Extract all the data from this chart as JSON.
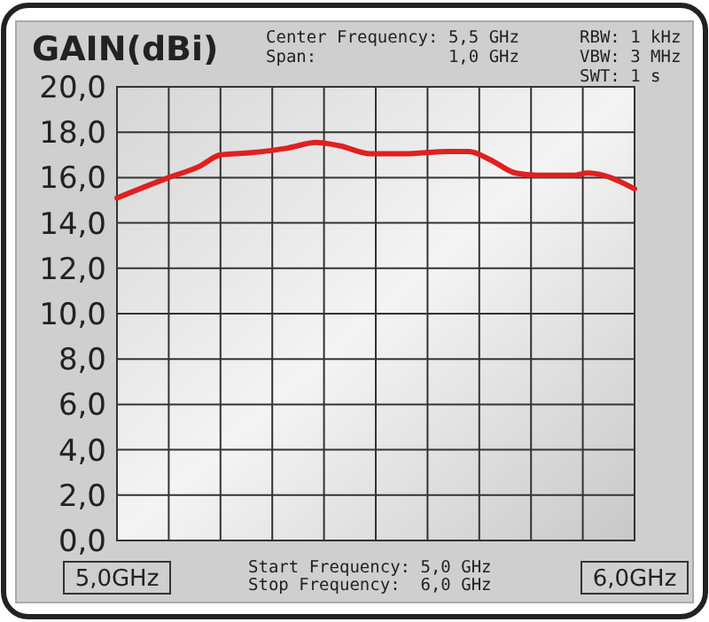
{
  "chart_data": {
    "type": "line",
    "ylabel": "GAIN(dBi)",
    "x": [
      5.0,
      5.1,
      5.16,
      5.2,
      5.26,
      5.33,
      5.385,
      5.43,
      5.49,
      5.555,
      5.64,
      5.68,
      5.72,
      5.77,
      5.81,
      5.88,
      5.91,
      5.94,
      6.0
    ],
    "series": [
      {
        "color": "#e02020",
        "values": [
          15.1,
          16.0,
          16.5,
          17.0,
          17.1,
          17.3,
          17.55,
          17.4,
          17.05,
          17.05,
          17.15,
          17.15,
          16.8,
          16.2,
          16.1,
          16.1,
          16.2,
          16.1,
          15.5
        ]
      }
    ],
    "xlim": [
      5,
      6
    ],
    "xticks": [
      {
        "value": 5.0,
        "label": "5,0GHz"
      },
      {
        "value": 5.1,
        "label": null
      },
      {
        "value": 5.2,
        "label": null
      },
      {
        "value": 5.3,
        "label": null
      },
      {
        "value": 5.4,
        "label": null
      },
      {
        "value": 5.5,
        "label": null
      },
      {
        "value": 5.6,
        "label": null
      },
      {
        "value": 5.7,
        "label": null
      },
      {
        "value": 5.8,
        "label": null
      },
      {
        "value": 5.9,
        "label": null
      },
      {
        "value": 6.0,
        "label": "6,0GHz"
      }
    ],
    "ylim": [
      0,
      20
    ],
    "yticks": [
      {
        "value": 0,
        "label": "0,0"
      },
      {
        "value": 2,
        "label": "2,0"
      },
      {
        "value": 4,
        "label": "4,0"
      },
      {
        "value": 6,
        "label": "6,0"
      },
      {
        "value": 8,
        "label": "8,0"
      },
      {
        "value": 10,
        "label": "10,0"
      },
      {
        "value": 12,
        "label": "12,0"
      },
      {
        "value": 14,
        "label": "14,0"
      },
      {
        "value": 16,
        "label": "16,0"
      },
      {
        "value": 18,
        "label": "18,0"
      },
      {
        "value": 20,
        "label": "20,0"
      }
    ],
    "grid": true,
    "line_style": "solid",
    "annotations": [
      "Center Frequency: 5,5 GHz",
      "Span:             1,0 GHz",
      "RBW: 1 kHz",
      "VBW: 3 MHz",
      "SWT: 1 s",
      "Start Frequency: 5,0 GHz",
      "Stop Frequency:  6,0 GHz"
    ]
  }
}
